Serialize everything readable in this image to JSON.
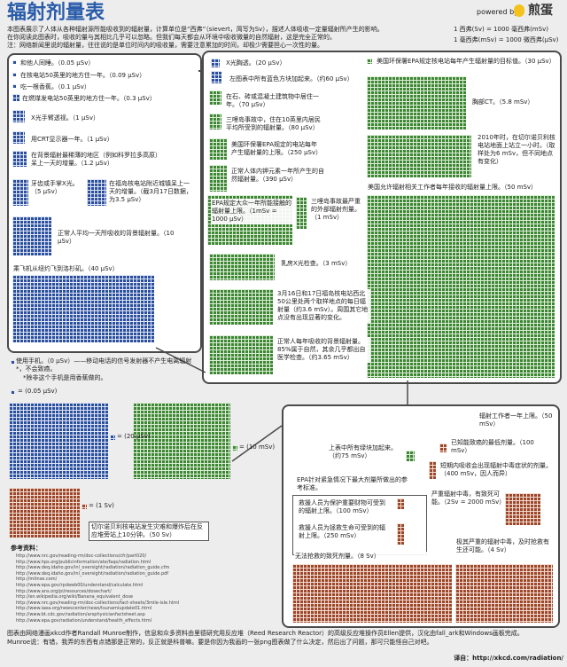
{
  "header": {
    "title": "辐射剂量表",
    "powered_by": "powered by",
    "brand": "煎蛋",
    "intro": [
      "本图表展示了人体从各种辐射源所能吸收到的辐射量，计算单位是“西弗”（sievert，简写为Sv），描述人体吸收一定量辐射所产生的影响。",
      "在你阅读此图表时，吸收的量与其相比几乎可以忽略。但我们每天都会从环境中吸收微量的自然辐射，这是完全正常的。",
      "注：网络新闻里说的辐射量，往往说的是单位时间内的吸收量，需要注意累加的时间，却极少需要担心一次性的量。"
    ],
    "units": [
      "1 西弗(Sv) = 1000 毫西弗(mSv)",
      "1 毫西弗(mSv) = 1000 微西弗(μSv)"
    ]
  },
  "blue_panel": {
    "items": [
      "和他人同睡。（0.05 μSv）",
      "在核电站50英里的地方住一年。（0.09 μSv）",
      "吃一根香蕉。（0.1 μSv）",
      "在燃煤发电站50英里的地方住一年。（0.3 μSv）",
      "X光手臂透视。（1 μSv）",
      "用CRT显示器一年。（1 μSv）",
      "在背景辐射最稀薄的地区（例如科罗拉多高原）呆上一天的增量。（1.2 μSv）",
      "牙齿或手掌X光。（5 μSv）",
      "在福岛核电站附近城镇呆上一天的增量。（截3月17日数据，为3.5 μSv）",
      "正常人平均一天所吸收的背景辐射量。（10 μSv）",
      "乘飞机从纽约飞到洛杉矶。（40 μSv）"
    ],
    "phone": "使用手机。（0 μSv）——移动电话的信号发射器不产生电离辐射*，不会致癌。",
    "footnote": "*除非这个手机是用香蕉做的。"
  },
  "green_panel": {
    "items": [
      "X光胸透。（20 μSv）",
      "左图表中所有蓝色方块加起来。（约60 μSv）",
      "在石、砖或混凝土建筑物中居住一年。（70 μSv）",
      "三哩岛事故中，住在10英里内居民平均所受到的辐射量。（80 μSv）",
      "美国环保署EPA规定的电站每年产生辐射量的上限。（250 μSv）",
      "正常人体内钾元素一年所产生的自然辐射量。（390 μSv）",
      "EPA规定大众一年所能接触的辐射量上限。（1mSv = 1000 μSv）",
      "三哩岛事故最严重的外部辐射剂量。（1 mSv）",
      "乳房X光检查。（3 mSv）",
      "3月16日和17日福岛核电站西北50公里处两个取样地点的每日辐射量（约3.6 mSv）。周围其它地点没有出现显著的变化。",
      "正常人每年吸收的背景辐射量。85%属于自然，其余几乎都出自医学检查。（约3.65 mSv）",
      "美国环保署EPA规定核电站每年产生辐射量的目标值。（30 μSv）",
      "胸部CT。（5.8 mSv）",
      "2010年时，在切尔诺贝利核电站地面上站立一小时。（取样处为6 mSv，但不同地点有变化）",
      "美国允许辐射相关工作者每年接收的辐射量上限。（50 mSv）"
    ]
  },
  "red_panel": {
    "items": [
      "辐射工作者一年上限。（50 mSv）",
      "上表中所有绿块加起来。（约75 mSv）",
      "已知能致癌的最低剂量。（100 mSv）",
      "短期内吸收会出现辐射中毒症状的剂量。（400 mSv，因人而异）",
      "EPA针对紧急情况下最大剂量所做出的参考标准。",
      "救援人员为保护重要财物可受到的辐射上限。（100 mSv）",
      "救援人员为拯救生命可受到的辐射上限。（250 mSv）",
      "严重辐射中毒，有致死可能。（2Sv = 2000 mSv）",
      "无法抢救的致死剂量。（8 Sv）",
      "极其严重的辐射中毒，及时抢救有生还可能。（4 Sv）"
    ]
  },
  "legend": {
    "blue": "= (0.05 μSv)",
    "blue_big": "= (20 μSv)",
    "green": "= (10 mSv)",
    "red": "= (1 Sv)"
  },
  "chernobyl_note": "切尔诺贝利核电站发生灾难和爆炸后在反应堆旁站上10分钟。（50 Sv）",
  "references": {
    "title": "参考资料：",
    "links": [
      "http://www.nrc.gov/reading-rm/doc-collections/cfr/part020/",
      "http://www.hps.org/publicinformation/ate/faqs/radiation.html",
      "http://www.deq.idaho.gov/inl_oversight/radiation/radiation_guide.cfm",
      "http://www.deq.idaho.gov/inl_oversight/radiation/radiation_guide.pdf",
      "http://mitnse.com/",
      "http://www.epa.gov/rpdweb00/understand/calculate.html",
      "http://www.ans.org/pi/resources/dosechart/",
      "http://en.wikipedia.org/wiki/Banana_equivalent_dose",
      "http://www.nrc.gov/reading-rm/doc-collections/fact-sheets/3mile-isle.html",
      "http://www.iaea.org/newscenter/news/tsunamiupdate01.html",
      "http://www.bt.cdc.gov/radiation/arsphysicianfactsheet.asp",
      "http://www.epa.gov/radiation/understand/health_effects.html"
    ]
  },
  "footer": {
    "lines": [
      "图表由网络漫画xkcd作者Randall Munroe制作，信息和众多资料由里德研究用反应堆（Reed Research Reactor）的高级反应堆操作员Ellen提供，汉化由fall_ark和Windows画板完成。",
      "Munroe说：有错，我弄的东西有点错那是正常的，反正就是科普嘛。要是你因为我画的一张png图表做了什么决定，然后出了问题，那可只能怪自己对吧。"
    ],
    "source": "译自：http://xkcd.com/radiation/"
  }
}
